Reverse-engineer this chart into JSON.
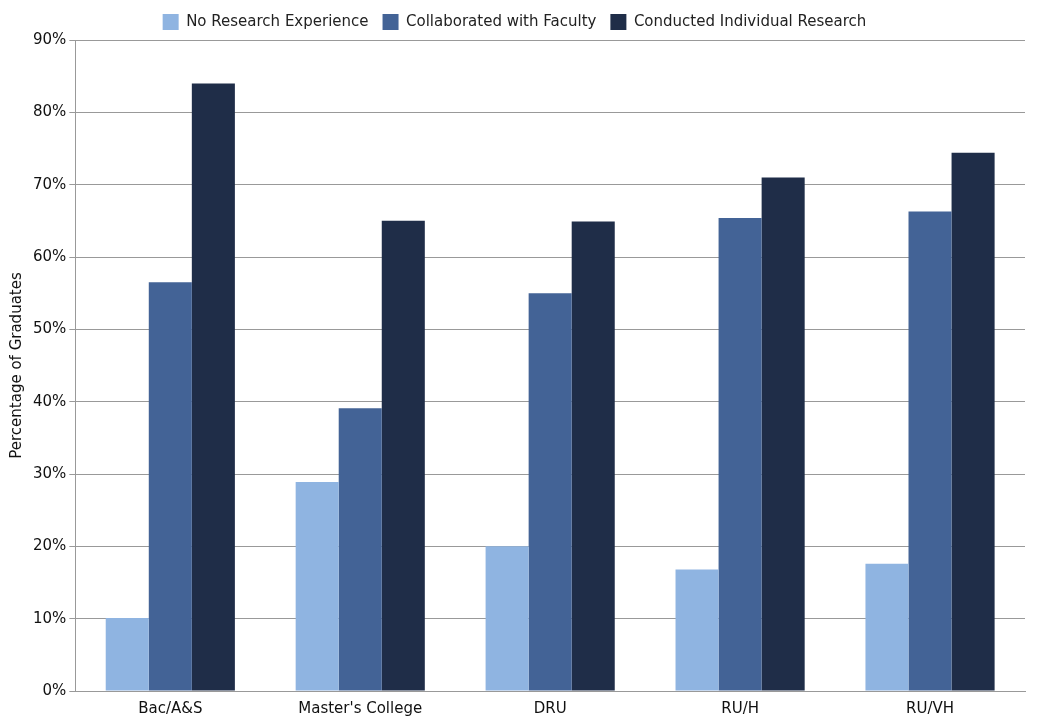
{
  "chart_data": {
    "type": "bar",
    "ylabel": "Percentage of Graduates",
    "categories": [
      "Bac/A&S",
      "Master's College",
      "DRU",
      "RU/H",
      "RU/VH"
    ],
    "series": [
      {
        "name": "No Research Experience",
        "color": "#8fb4e1",
        "values": [
          10.1,
          28.9,
          20,
          16.8,
          17.6
        ]
      },
      {
        "name": "Collaborated with Faculty",
        "color": "#436396",
        "values": [
          56.5,
          39.1,
          55,
          65.4,
          66.3
        ]
      },
      {
        "name": "Conducted Individual Research",
        "color": "#1f2d48",
        "values": [
          84,
          65,
          64.9,
          71,
          74.4
        ]
      }
    ],
    "ylim": [
      0,
      90
    ],
    "yticks": [
      {
        "value": 0,
        "label": "0%"
      },
      {
        "value": 10,
        "label": "10%"
      },
      {
        "value": 20,
        "label": "20%"
      },
      {
        "value": 30,
        "label": "30%"
      },
      {
        "value": 40,
        "label": "40%"
      },
      {
        "value": 50,
        "label": "50%"
      },
      {
        "value": 60,
        "label": "60%"
      },
      {
        "value": 70,
        "label": "70%"
      },
      {
        "value": 80,
        "label": "80%"
      },
      {
        "value": 90,
        "label": "90%"
      }
    ],
    "grid": "y",
    "legend": "top"
  }
}
